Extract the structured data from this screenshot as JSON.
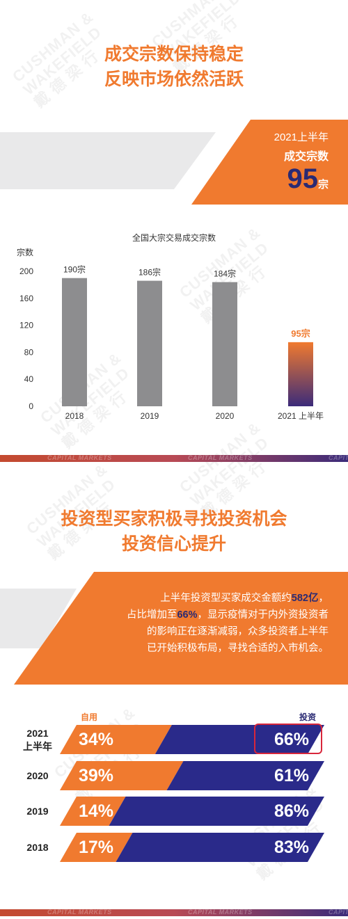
{
  "section1": {
    "heading_line1": "成交宗数保持稳定",
    "heading_line2": "反映市场依然活跃"
  },
  "kpi": {
    "line1": "2021上半年",
    "line2": "成交宗数",
    "value": "95",
    "unit": "宗"
  },
  "watermark": {
    "line1": "CUSHMAN &",
    "line2": "WAKEFIELD",
    "line3": "戴 德 梁 行"
  },
  "footer_strip": {
    "text": "CAPITAL MARKETS"
  },
  "chart_data": [
    {
      "type": "bar",
      "title": "全国大宗交易成交宗数",
      "ylabel": "宗数",
      "xlabel": "",
      "categories": [
        "2018",
        "2019",
        "2020",
        "2021 上半年"
      ],
      "values": [
        190,
        186,
        184,
        95
      ],
      "data_labels": [
        "190宗",
        "186宗",
        "184宗",
        "95宗"
      ],
      "yticks": [
        0,
        40,
        80,
        120,
        160,
        200
      ],
      "ylim": [
        0,
        200
      ],
      "grid": false,
      "colors": {
        "bar": "#8d8d8f",
        "highlight_top": "#f07a2f",
        "highlight_bottom": "#3b2b7a",
        "highlight_label": "#f07a2f"
      }
    },
    {
      "type": "bar",
      "orientation": "horizontal-stacked",
      "series_labels": [
        "自用",
        "投资"
      ],
      "categories": [
        "2021 上半年",
        "2020",
        "2019",
        "2018"
      ],
      "category_lines": [
        [
          "2021",
          "上半年"
        ],
        [
          "2020"
        ],
        [
          "2019"
        ],
        [
          "2018"
        ]
      ],
      "series": [
        {
          "name": "自用",
          "values": [
            34,
            39,
            14,
            17
          ],
          "labels": [
            "34%",
            "39%",
            "14%",
            "17%"
          ],
          "color": "#f07a2f"
        },
        {
          "name": "投资",
          "values": [
            66,
            61,
            86,
            83
          ],
          "labels": [
            "66%",
            "61%",
            "86%",
            "83%"
          ],
          "color": "#2a2a8a"
        }
      ],
      "highlighted": {
        "category": "2021 上半年",
        "series": "投资"
      }
    }
  ],
  "section2": {
    "heading_line1": "投资型买家积极寻找投资机会",
    "heading_line2": "投资信心提升",
    "text_line1_a": "上半年投资型买家成交金额约",
    "text_line1_b": "582亿",
    "text_line1_c": "，",
    "text_line2_a": "占比增加至",
    "text_line2_b": "66%",
    "text_line2_c": "，显示疫情对于内外资投资者",
    "text_line3": "的影响正在逐渐减弱，众多投资者上半年",
    "text_line4": "已开始积极布局，寻找合适的入市机会。"
  },
  "colors": {
    "orange": "#f07a2f",
    "navy": "#2a2a73",
    "gray_band": "#e9e9ea",
    "gray_bar": "#8d8d8f"
  }
}
